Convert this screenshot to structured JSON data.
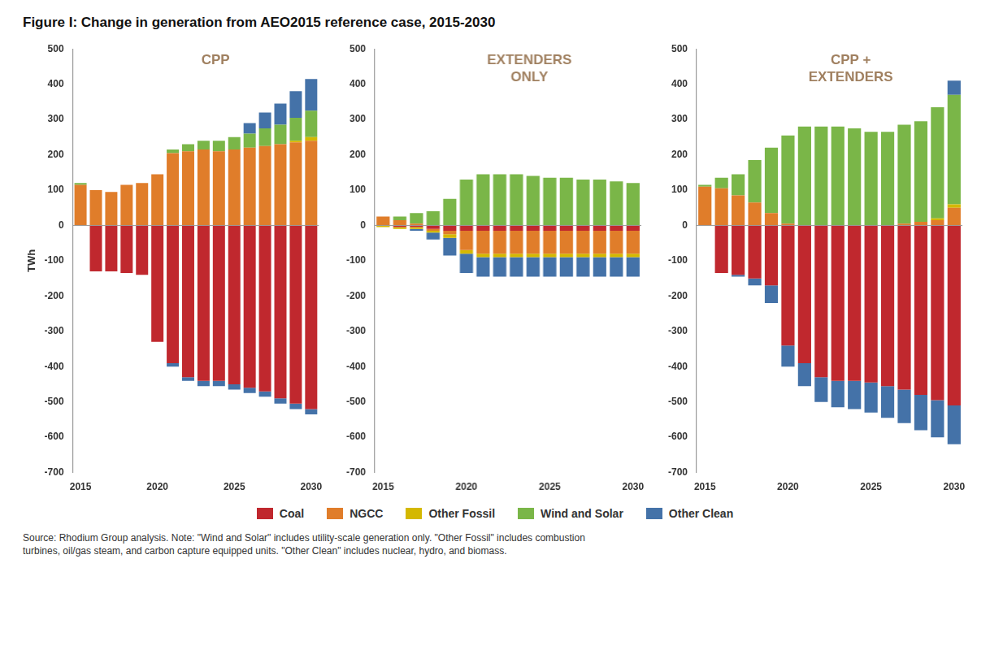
{
  "chart_data": [
    {
      "type": "bar",
      "stacked": true,
      "title": "Figure I: Change in generation from AEO2015 reference case, 2015-2030",
      "ylabel": "TWh",
      "annotations": [
        "CPP",
        "Source: Rhodium Group analysis. Note: \"Wind and Solar\" includes utility-scale generation only. \"Other Fossil\" includes combustion\nturbines, oil/gas steam, and carbon capture equipped units. \"Other Clean\" includes nuclear, hydro, and biomass."
      ],
      "categories": [
        "2015",
        null,
        null,
        null,
        null,
        "2020",
        null,
        null,
        null,
        null,
        "2025",
        null,
        null,
        null,
        null,
        "2030"
      ],
      "series": [
        {
          "name": "Coal",
          "color": "#c0282e",
          "values": [
            0,
            -130,
            -130,
            -135,
            -140,
            -330,
            -390,
            -430,
            -440,
            -440,
            -450,
            -460,
            -470,
            -490,
            -505,
            -520
          ]
        },
        {
          "name": "NGCC",
          "color": "#e07d2a",
          "values": [
            115,
            100,
            95,
            115,
            120,
            145,
            205,
            210,
            215,
            210,
            215,
            220,
            225,
            230,
            235,
            240
          ]
        },
        {
          "name": "Other Fossil",
          "color": "#d4b800",
          "values": [
            0,
            0,
            0,
            0,
            0,
            0,
            0,
            0,
            0,
            0,
            0,
            0,
            0,
            0,
            5,
            10
          ]
        },
        {
          "name": "Wind and Solar",
          "color": "#7ab648",
          "values": [
            5,
            0,
            0,
            0,
            0,
            0,
            10,
            20,
            25,
            30,
            35,
            40,
            50,
            55,
            65,
            75
          ]
        },
        {
          "name": "Other Clean",
          "color": "#4472a8",
          "values": [
            0,
            0,
            0,
            0,
            0,
            0,
            0,
            0,
            0,
            0,
            0,
            30,
            45,
            60,
            75,
            90
          ]
        },
        {
          "name": "Other Clean",
          "color": "#4472a8",
          "values": [
            0,
            0,
            0,
            0,
            0,
            0,
            -10,
            -10,
            -15,
            -15,
            -15,
            -15,
            -15,
            -15,
            -15,
            -15
          ]
        }
      ],
      "ylim": [
        -700,
        500
      ],
      "yticks": [
        -700,
        -600,
        -500,
        -400,
        -300,
        -200,
        -100,
        0,
        100,
        200,
        300,
        400,
        500
      ],
      "grid": false,
      "legend": "bottom"
    },
    {
      "type": "bar",
      "stacked": true,
      "annotations": [
        "EXTENDERS\nONLY"
      ],
      "categories": [
        "2015",
        null,
        null,
        null,
        null,
        "2020",
        null,
        null,
        null,
        null,
        "2025",
        null,
        null,
        null,
        null,
        "2030"
      ],
      "series": [
        {
          "name": "Coal",
          "color": "#c0282e",
          "values": [
            0,
            -5,
            -5,
            -10,
            -15,
            -15,
            -15,
            -15,
            -15,
            -15,
            -15,
            -15,
            -15,
            -15,
            -15,
            -15
          ]
        },
        {
          "name": "NGCC",
          "color": "#e07d2a",
          "values": [
            25,
            15,
            5,
            -5,
            -10,
            -55,
            -65,
            -65,
            -65,
            -65,
            -65,
            -65,
            -65,
            -65,
            -65,
            -65
          ]
        },
        {
          "name": "Other Fossil",
          "color": "#d4b800",
          "values": [
            -5,
            -5,
            -5,
            -5,
            -10,
            -10,
            -10,
            -10,
            -10,
            -10,
            -10,
            -10,
            -10,
            -10,
            -10,
            -10
          ]
        },
        {
          "name": "Wind and Solar",
          "color": "#7ab648",
          "values": [
            0,
            10,
            30,
            40,
            75,
            130,
            145,
            145,
            145,
            140,
            135,
            135,
            130,
            130,
            125,
            120
          ]
        },
        {
          "name": "Other Clean",
          "color": "#4472a8",
          "values": [
            0,
            0,
            0,
            0,
            0,
            0,
            0,
            0,
            0,
            0,
            0,
            0,
            0,
            0,
            0,
            0
          ]
        },
        {
          "name": "Other Clean",
          "color": "#4472a8",
          "values": [
            0,
            0,
            -5,
            -20,
            -50,
            -55,
            -55,
            -55,
            -55,
            -55,
            -55,
            -55,
            -55,
            -55,
            -55,
            -55
          ]
        }
      ],
      "ylim": [
        -700,
        500
      ],
      "yticks": [
        -700,
        -600,
        -500,
        -400,
        -300,
        -200,
        -100,
        0,
        100,
        200,
        300,
        400,
        500
      ],
      "grid": false
    },
    {
      "type": "bar",
      "stacked": true,
      "annotations": [
        "CPP +\nEXTENDERS"
      ],
      "categories": [
        "2015",
        null,
        null,
        null,
        null,
        "2020",
        null,
        null,
        null,
        null,
        "2025",
        null,
        null,
        null,
        null,
        "2030"
      ],
      "series": [
        {
          "name": "Coal",
          "color": "#c0282e",
          "values": [
            0,
            -135,
            -140,
            -150,
            -170,
            -340,
            -390,
            -430,
            -440,
            -440,
            -445,
            -455,
            -465,
            -480,
            -495,
            -510
          ]
        },
        {
          "name": "NGCC",
          "color": "#e07d2a",
          "values": [
            110,
            105,
            85,
            65,
            35,
            5,
            0,
            0,
            0,
            0,
            0,
            0,
            5,
            10,
            15,
            50
          ]
        },
        {
          "name": "Other Fossil",
          "color": "#d4b800",
          "values": [
            0,
            0,
            0,
            0,
            0,
            0,
            0,
            0,
            0,
            0,
            0,
            0,
            0,
            0,
            5,
            10
          ]
        },
        {
          "name": "Wind and Solar",
          "color": "#7ab648",
          "values": [
            5,
            30,
            60,
            120,
            185,
            250,
            280,
            280,
            280,
            275,
            265,
            265,
            280,
            285,
            315,
            310
          ]
        },
        {
          "name": "Other Clean",
          "color": "#4472a8",
          "values": [
            0,
            0,
            0,
            0,
            0,
            0,
            0,
            0,
            0,
            0,
            0,
            0,
            0,
            0,
            0,
            40
          ]
        },
        {
          "name": "Other Clean",
          "color": "#4472a8",
          "values": [
            0,
            0,
            -5,
            -20,
            -50,
            -60,
            -65,
            -70,
            -75,
            -80,
            -85,
            -90,
            -95,
            -100,
            -105,
            -110
          ]
        }
      ],
      "ylim": [
        -700,
        500
      ],
      "yticks": [
        -700,
        -600,
        -500,
        -400,
        -300,
        -200,
        -100,
        0,
        100,
        200,
        300,
        400,
        500
      ],
      "grid": false
    }
  ]
}
